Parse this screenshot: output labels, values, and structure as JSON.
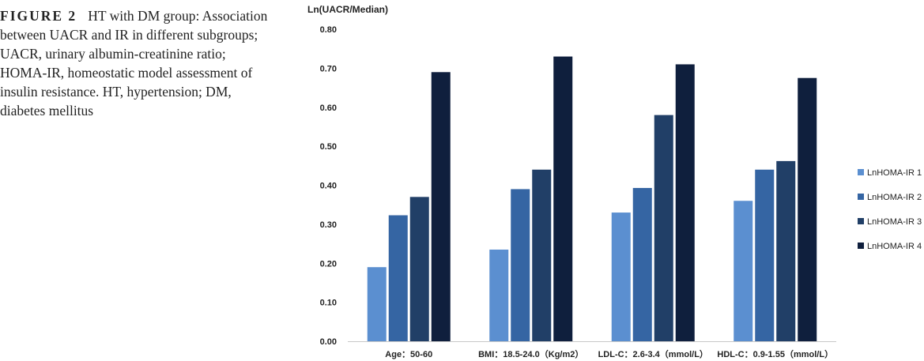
{
  "caption": {
    "label": "FIGURE 2",
    "text": "HT with DM group: Association between UACR and IR in different subgroups; UACR, urinary albumin-creatinine ratio; HOMA-IR, homeostatic model assessment of insulin resistance. HT, hypertension; DM, diabetes mellitus"
  },
  "chart_data": {
    "type": "bar",
    "title": "",
    "ylabel": "Ln(UACR/Median)",
    "xlabel": "",
    "ylim": [
      0,
      0.8
    ],
    "yticks": [
      "0.00",
      "0.10",
      "0.20",
      "0.30",
      "0.40",
      "0.50",
      "0.60",
      "0.70",
      "0.80"
    ],
    "grid": false,
    "legend_position": "right",
    "categories": [
      "Age：50-60",
      "BMI：18.5-24.0（Kg/m2）",
      "LDL-C：2.6-3.4（mmol/L）",
      "HDL-C：0.9-1.55（mmol/L）"
    ],
    "series": [
      {
        "name": "LnHOMA-IR 1",
        "color": "#5b8fd0",
        "values": [
          0.19,
          0.235,
          0.33,
          0.36
        ]
      },
      {
        "name": "LnHOMA-IR 2",
        "color": "#3565a3",
        "values": [
          0.323,
          0.39,
          0.393,
          0.44
        ]
      },
      {
        "name": "LnHOMA-IR 3",
        "color": "#213f67",
        "values": [
          0.37,
          0.44,
          0.58,
          0.462
        ]
      },
      {
        "name": "LnHOMA-IR 4",
        "color": "#0f1f3d",
        "values": [
          0.69,
          0.73,
          0.71,
          0.675
        ]
      }
    ]
  }
}
